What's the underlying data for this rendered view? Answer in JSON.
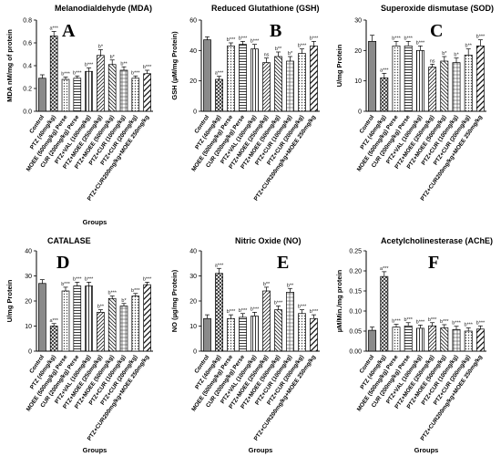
{
  "panels": [
    {
      "title": "Melanodialdehyde (MDA)",
      "letter": "A",
      "ylabel": "MDA nM/mg of protein",
      "xlabel": "Groups",
      "categories": [
        "Control",
        "PTZ (40mg/kg)",
        "MOEE (500mg/kg) Perse",
        "CUR (200mg/kg) Perse",
        "PTZ+VAL (100mg/kg)",
        "PTZ+MOEE (250mg/kg)",
        "PTZ+MOEE (500mg/kg)",
        "PTZ+CUR (100mg/kg)",
        "PTZ+CUR (200mg/kg)",
        "PTZ+CUR200mg/kg+MOEE 250mg/kg"
      ]
    },
    {
      "title": "Reduced Glutathione (GSH)",
      "letter": "B",
      "ylabel": "GSH (µM/mg Protein)",
      "xlabel": "",
      "categories": [
        "Control",
        "PTZ (40mg/kg)",
        "MOEE (500mg/kg) Perse",
        "CUR (200mg/kg) Perse",
        "PTZ+VAL (100mg/kg)",
        "PTZ+MOEE (250mg/kg)",
        "PTZ+MOEE (500mg/kg)",
        "PTZ+CUR (100mg/kg)",
        "PTZ+CUR (200mg/kg)",
        "PTZ+CUR200mg/kg+MOEE 250mg/kg"
      ]
    },
    {
      "title": "Superoxide dismutase (SOD)",
      "letter": "C",
      "ylabel": "U/mg Protein",
      "xlabel": "",
      "categories": [
        "Control",
        "PTZ (40mg/kg)",
        "MOEE (500mg/kg) Perse",
        "CUR (200mg/kg) Perse",
        "PTZ+VAL (100mg/kg)",
        "PTZ+MOEE (250mg/kg)",
        "PTZ+MOEE (500mg/kg)",
        "PTZ+CUR (100mg/kg)",
        "PTZ+CUR (200mg/kg)",
        "PTZ+CUR200mg/kg+MOEE 250mg/kg"
      ]
    },
    {
      "title": "CATALASE",
      "letter": "D",
      "ylabel": "U/mg Protein",
      "xlabel": "Groups",
      "categories": [
        "Control",
        "PTZ (40mg/kg)",
        "MOEE (500mg/kg) Perse",
        "CUR (200mg/kg) Perse",
        "PTZ+VAL (100mg/kg)",
        "PTZ+MOEE (250mg/kg)",
        "PTZ+MOEE (500mg/kg)",
        "PTZ+CUR (100mg/kg)",
        "PTZ+CUR (200mg/kg)",
        "PTZ+CUR200mg/kg+MOEE 250mg/kg"
      ]
    },
    {
      "title": "Nitric Oxide (NO)",
      "letter": "E",
      "ylabel": "NO (µg/mg Protein)",
      "xlabel": "Groups",
      "categories": [
        "Control",
        "PTZ (40mg/kg)",
        "MOEE (500mg/kg) Perse",
        "CUR (200mg/kg) Perse",
        "PTZ+VAL (100mg/kg)",
        "PTZ+MOEE (250mg/kg)",
        "PTZ+MOEE (500mg/kg)",
        "PTZ+CUR (100mg/kg)",
        "PTZ+CUR (200mg/kg)",
        "PTZ+CUR200mg/kg+MOEE 250mg/kg"
      ]
    },
    {
      "title": "Acetylcholinesterase (AChE)",
      "letter": "F",
      "ylabel": "µM/Min./mg protein",
      "xlabel": "Groups",
      "categories": [
        "Control",
        "PTZ (40mg/kg)",
        "MOEE (500mg/kg) Perse",
        "CUR (200mg/kg) Perse",
        "PTZ+VAL (100mg/kg)",
        "PTZ+MOEE (250mg/kg)",
        "PTZ+MOEE (500mg/kg)",
        "PTZ+CUR (100mg/kg)",
        "PTZ+CUR (200mg/kg)",
        "PTZ+CUR200mg/kg+MOEE 250mg/kg"
      ]
    }
  ],
  "chart_data": [
    {
      "type": "bar",
      "title": "Melanodialdehyde (MDA)",
      "ylabel": "MDA nM/mg of protein",
      "xlabel": "Groups",
      "ylim": [
        0,
        0.8
      ],
      "yticks": [
        0.0,
        0.2,
        0.4,
        0.6,
        0.8
      ],
      "tick_format": "0.0",
      "values": [
        0.29,
        0.66,
        0.28,
        0.29,
        0.35,
        0.49,
        0.41,
        0.36,
        0.29,
        0.33
      ],
      "errors": [
        0.03,
        0.04,
        0.02,
        0.02,
        0.03,
        0.05,
        0.04,
        0.03,
        0.02,
        0.03
      ],
      "annotations": [
        "",
        "a***",
        "b***",
        "b***",
        "b***",
        "b*",
        "b*",
        "b**",
        "b***",
        "b***"
      ]
    },
    {
      "type": "bar",
      "title": "Reduced Glutathione (GSH)",
      "ylabel": "GSH (µM/mg Protein)",
      "xlabel": "",
      "ylim": [
        0,
        60
      ],
      "yticks": [
        0,
        20,
        40,
        60
      ],
      "tick_format": "0",
      "values": [
        47,
        21,
        43,
        44,
        41,
        32,
        36,
        33,
        38,
        43
      ],
      "errors": [
        2,
        2,
        2,
        2,
        3,
        3,
        3,
        3,
        3,
        3
      ],
      "annotations": [
        "",
        "a***",
        "b***",
        "b***",
        "b***",
        "ns",
        "b**",
        "b*",
        "b***",
        "b***"
      ]
    },
    {
      "type": "bar",
      "title": "Superoxide dismutase (SOD)",
      "ylabel": "U/mg Protein",
      "xlabel": "",
      "ylim": [
        0,
        30
      ],
      "yticks": [
        0,
        10,
        20,
        30
      ],
      "tick_format": "0",
      "values": [
        23,
        11,
        21.5,
        21.5,
        20,
        14.5,
        16.5,
        16,
        18.5,
        21.5
      ],
      "errors": [
        2,
        1.5,
        1.5,
        1.5,
        1.5,
        1,
        1.5,
        1.5,
        2,
        2
      ],
      "annotations": [
        "",
        "a***",
        "b***",
        "b***",
        "b***",
        "ns",
        "b*",
        "b*",
        "b**",
        "b***"
      ]
    },
    {
      "type": "bar",
      "title": "CATALASE",
      "ylabel": "U/mg Protein",
      "xlabel": "Groups",
      "ylim": [
        0,
        40
      ],
      "yticks": [
        0,
        10,
        20,
        30,
        40
      ],
      "tick_format": "0",
      "values": [
        27,
        10,
        24,
        26,
        26,
        15.5,
        21,
        18,
        22,
        26.5
      ],
      "errors": [
        1.5,
        1,
        1.5,
        1.5,
        1.5,
        1,
        1,
        1,
        1,
        1
      ],
      "annotations": [
        "",
        "a***",
        "b***",
        "b***",
        "b***",
        "b**",
        "b***",
        "b*",
        "b***",
        "b***"
      ]
    },
    {
      "type": "bar",
      "title": "Nitric Oxide (NO)",
      "ylabel": "NO (µg/mg Protein)",
      "xlabel": "Groups",
      "ylim": [
        0,
        40
      ],
      "yticks": [
        0,
        10,
        20,
        30,
        40
      ],
      "tick_format": "0",
      "values": [
        13,
        31,
        13,
        13.5,
        14,
        24,
        16.5,
        23.5,
        15,
        13
      ],
      "errors": [
        1.5,
        2,
        1.5,
        1.5,
        1.5,
        1.5,
        1.5,
        1.5,
        1.5,
        1.5
      ],
      "annotations": [
        "",
        "a***",
        "b***",
        "b***",
        "b***",
        "b**",
        "b***",
        "b**",
        "b***",
        "b***"
      ]
    },
    {
      "type": "bar",
      "title": "Acetylcholinesterase (AChE)",
      "ylabel": "µM/Min./mg protein",
      "xlabel": "Groups",
      "ylim": [
        0,
        0.25
      ],
      "yticks": [
        0.0,
        0.05,
        0.1,
        0.15,
        0.2,
        0.25
      ],
      "tick_format": "0.00",
      "values": [
        0.052,
        0.186,
        0.06,
        0.063,
        0.057,
        0.063,
        0.058,
        0.054,
        0.05,
        0.055
      ],
      "errors": [
        0.008,
        0.012,
        0.007,
        0.008,
        0.008,
        0.008,
        0.008,
        0.008,
        0.008,
        0.008
      ],
      "annotations": [
        "",
        "a***",
        "b***",
        "b***",
        "b***",
        "b***",
        "b***",
        "b***",
        "b***",
        "b***"
      ]
    }
  ]
}
